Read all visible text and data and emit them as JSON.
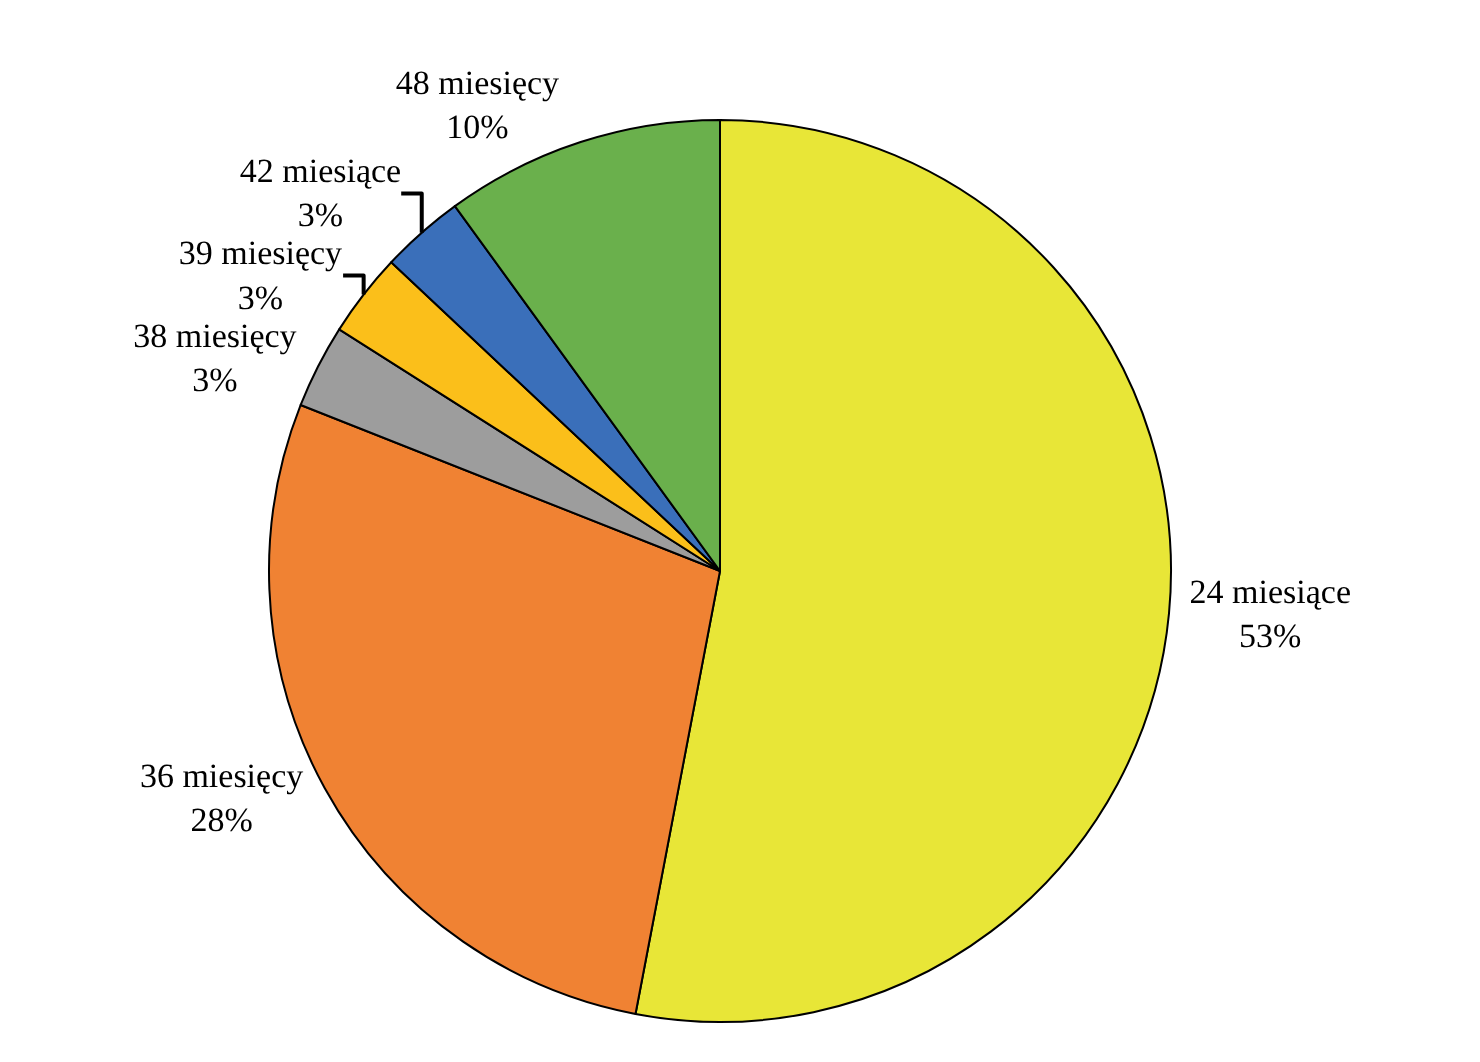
{
  "chart_data": {
    "type": "pie",
    "categories": [
      "24 miesiące",
      "36 miesięcy",
      "38 miesięcy",
      "39 miesięcy",
      "42 miesiące",
      "48 miesięcy"
    ],
    "values": [
      53,
      28,
      3,
      3,
      3,
      10
    ],
    "value_labels": [
      "53%",
      "28%",
      "3%",
      "3%",
      "3%",
      "10%"
    ],
    "colors": [
      "#e8e637",
      "#f08233",
      "#9d9d9d",
      "#fbbf1a",
      "#3a6fba",
      "#6ab04c"
    ],
    "legend": false
  }
}
